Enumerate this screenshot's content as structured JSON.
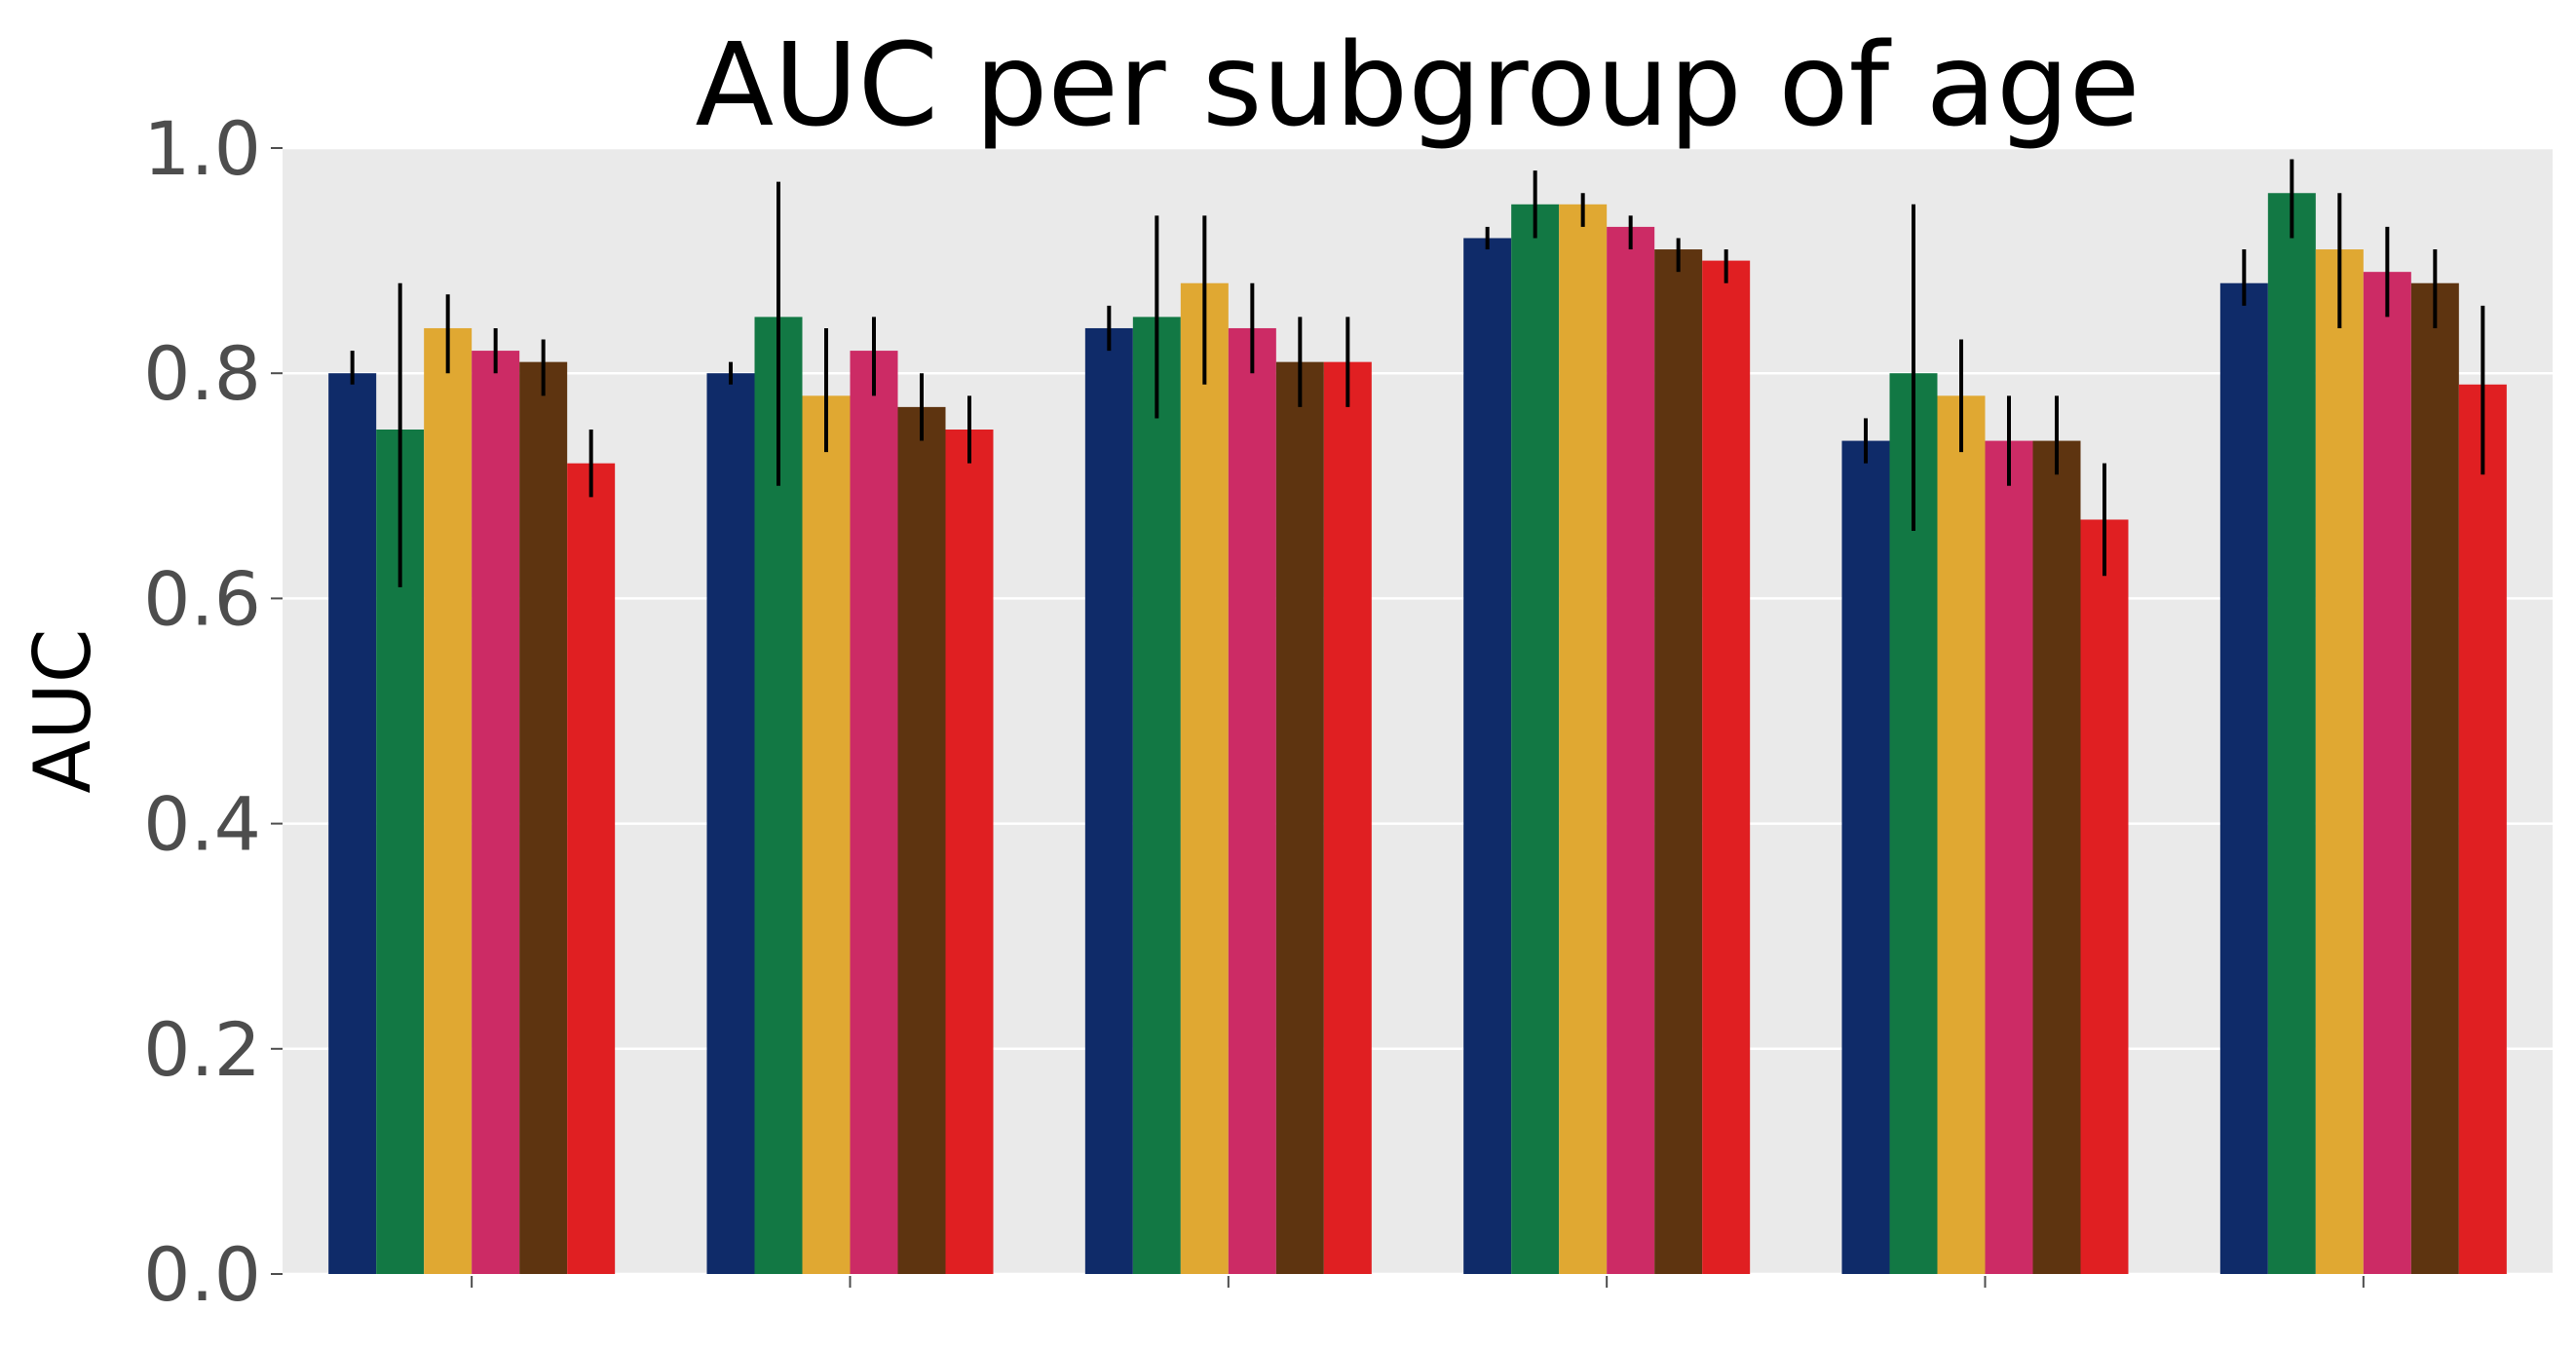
{
  "chart_data": {
    "type": "bar",
    "title": "AUC per subgroup of age",
    "xlabel": "",
    "ylabel": "AUC",
    "ylim": [
      0.0,
      1.0
    ],
    "yticks": [
      "0.0",
      "0.2",
      "0.4",
      "0.6",
      "0.8",
      "1.0"
    ],
    "grid": true,
    "legend": "none",
    "background": "#EAEAEA",
    "gridline_color": "#FFFFFF",
    "errorbar_color": "#000000",
    "group_count": 6,
    "series": [
      {
        "color": "#0F2B69",
        "values": [
          0.8,
          0.8,
          0.84,
          0.92,
          0.74,
          0.88
        ],
        "err_low": [
          0.79,
          0.79,
          0.82,
          0.91,
          0.72,
          0.86
        ],
        "err_high": [
          0.82,
          0.81,
          0.86,
          0.93,
          0.76,
          0.91
        ]
      },
      {
        "color": "#127844",
        "values": [
          0.75,
          0.85,
          0.85,
          0.95,
          0.8,
          0.96
        ],
        "err_low": [
          0.61,
          0.7,
          0.76,
          0.92,
          0.66,
          0.92
        ],
        "err_high": [
          0.88,
          0.97,
          0.94,
          0.98,
          0.95,
          0.99
        ]
      },
      {
        "color": "#E0A832",
        "values": [
          0.84,
          0.78,
          0.88,
          0.95,
          0.78,
          0.91
        ],
        "err_low": [
          0.8,
          0.73,
          0.79,
          0.93,
          0.73,
          0.84
        ],
        "err_high": [
          0.87,
          0.84,
          0.94,
          0.96,
          0.83,
          0.96
        ]
      },
      {
        "color": "#CC2B65",
        "values": [
          0.82,
          0.82,
          0.84,
          0.93,
          0.74,
          0.89
        ],
        "err_low": [
          0.8,
          0.78,
          0.8,
          0.91,
          0.7,
          0.85
        ],
        "err_high": [
          0.84,
          0.85,
          0.88,
          0.94,
          0.78,
          0.93
        ]
      },
      {
        "color": "#5E3410",
        "values": [
          0.81,
          0.77,
          0.81,
          0.91,
          0.74,
          0.88
        ],
        "err_low": [
          0.78,
          0.74,
          0.77,
          0.89,
          0.71,
          0.84
        ],
        "err_high": [
          0.83,
          0.8,
          0.85,
          0.92,
          0.78,
          0.91
        ]
      },
      {
        "color": "#E01F22",
        "values": [
          0.72,
          0.75,
          0.81,
          0.9,
          0.67,
          0.79
        ],
        "err_low": [
          0.69,
          0.72,
          0.77,
          0.88,
          0.62,
          0.71
        ],
        "err_high": [
          0.75,
          0.78,
          0.85,
          0.91,
          0.72,
          0.86
        ]
      }
    ]
  }
}
